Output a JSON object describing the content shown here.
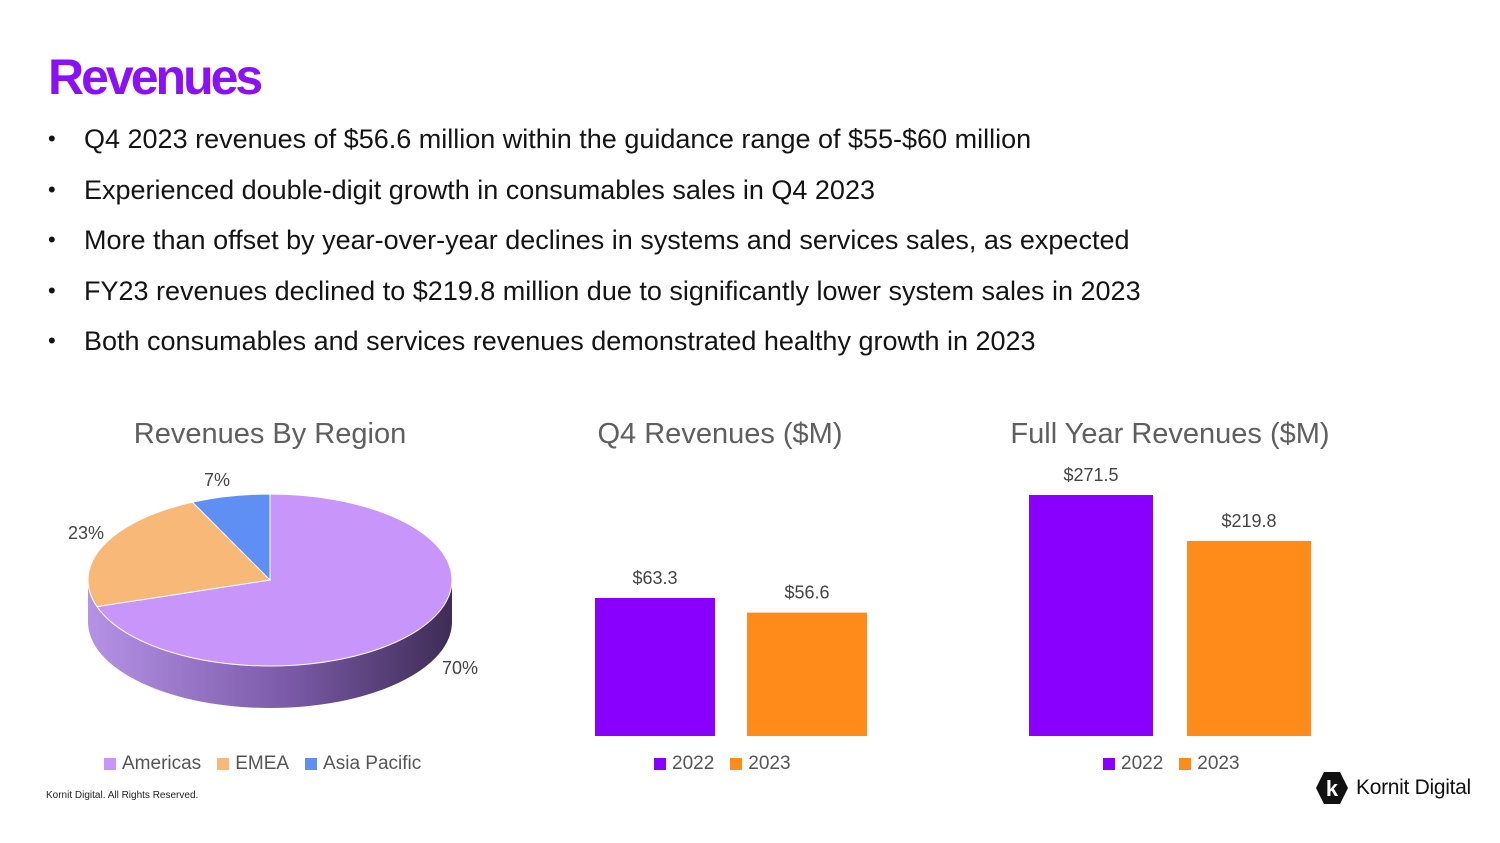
{
  "header": {
    "title": "Revenues"
  },
  "bullets": [
    "Q4 2023 revenues of $56.6 million within the guidance range of $55-$60 million",
    "Experienced double-digit growth in consumables sales in Q4 2023",
    "More than offset by year-over-year declines in systems and services sales, as expected",
    "FY23 revenues declined to $219.8 million due to significantly lower system sales in 2023",
    "Both consumables and services revenues demonstrated healthy growth in 2023"
  ],
  "bullet_symbol": "•",
  "chart_data": [
    {
      "type": "pie",
      "title": "Revenues By Region",
      "labels": [
        "Americas",
        "EMEA",
        "Asia Pacific"
      ],
      "values": [
        70,
        23,
        7
      ],
      "value_labels": [
        "70%",
        "23%",
        "7%"
      ],
      "colors": [
        "#c896fa",
        "#f8b878",
        "#5f8ff2"
      ],
      "legend_position": "bottom"
    },
    {
      "type": "bar",
      "title": "Q4 Revenues ($M)",
      "categories": [
        "2022",
        "2023"
      ],
      "values": [
        63.3,
        56.6
      ],
      "value_labels": [
        "$63.3",
        "$56.6"
      ],
      "colors": [
        "#8a00ff",
        "#ff8c1a"
      ],
      "legend_position": "bottom"
    },
    {
      "type": "bar",
      "title": "Full Year Revenues ($M)",
      "categories": [
        "2022",
        "2023"
      ],
      "values": [
        271.5,
        219.8
      ],
      "value_labels": [
        "$271.5",
        "$219.8"
      ],
      "colors": [
        "#8a00ff",
        "#ff8c1a"
      ],
      "legend_position": "bottom"
    }
  ],
  "footer": {
    "copyright": "Kornit Digital. All Rights Reserved.",
    "logo_text": "Kornit Digital",
    "logo_letter": "k"
  },
  "colors": {
    "title": "#8a10f5",
    "chart_title": "#5f5f5f"
  }
}
